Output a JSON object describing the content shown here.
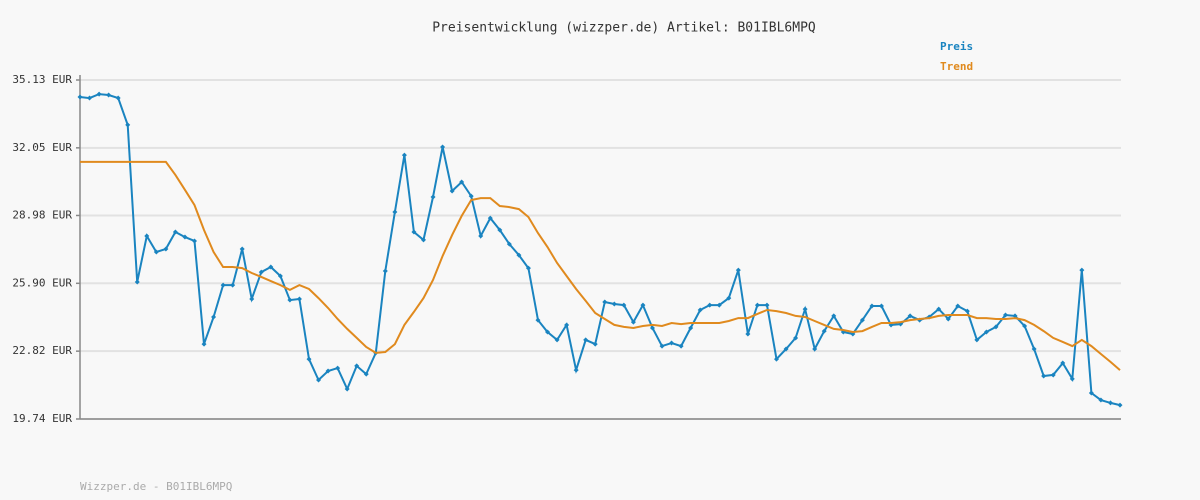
{
  "chart_data": {
    "type": "line",
    "title": "Preisentwicklung (wizzper.de) Artikel: B01IBL6MPQ",
    "source": "Wizzper.de - B01IBL6MPQ",
    "legend": "top-right",
    "grid": true,
    "ylim": [
      19.74,
      35.13
    ],
    "yticks": [
      {
        "value": 19.74,
        "label": "19.74 EUR"
      },
      {
        "value": 22.82,
        "label": "22.82 EUR"
      },
      {
        "value": 25.9,
        "label": "25.90 EUR"
      },
      {
        "value": 28.98,
        "label": "28.98 EUR"
      },
      {
        "value": 32.05,
        "label": "32.05 EUR"
      },
      {
        "value": 35.13,
        "label": "35.13 EUR"
      }
    ],
    "series": [
      {
        "name": "Preis",
        "color": "#1a84c0",
        "markers": true,
        "values": [
          34.36,
          34.31,
          34.49,
          34.45,
          34.31,
          33.09,
          25.96,
          28.05,
          27.32,
          27.46,
          28.23,
          28.0,
          27.82,
          23.14,
          24.37,
          25.82,
          25.82,
          27.46,
          25.19,
          26.41,
          26.64,
          26.23,
          25.14,
          25.19,
          22.46,
          21.51,
          21.92,
          22.05,
          21.1,
          22.15,
          21.78,
          22.74,
          26.46,
          29.14,
          31.72,
          28.23,
          27.87,
          29.82,
          32.09,
          30.09,
          30.5,
          29.86,
          28.05,
          28.86,
          28.32,
          27.68,
          27.18,
          26.59,
          24.23,
          23.69,
          23.33,
          24.01,
          21.96,
          23.33,
          23.14,
          25.05,
          24.96,
          24.91,
          24.14,
          24.91,
          23.87,
          23.05,
          23.19,
          23.05,
          23.87,
          24.69,
          24.91,
          24.91,
          25.23,
          26.5,
          23.6,
          24.91,
          24.91,
          22.46,
          22.92,
          23.42,
          24.73,
          22.92,
          23.73,
          24.42,
          23.69,
          23.6,
          24.23,
          24.87,
          24.87,
          24.01,
          24.05,
          24.42,
          24.23,
          24.37,
          24.73,
          24.28,
          24.87,
          24.64,
          23.33,
          23.69,
          23.92,
          24.46,
          24.42,
          23.96,
          22.92,
          21.69,
          21.74,
          22.28,
          21.56,
          26.5,
          20.92,
          20.6,
          20.47,
          20.37
        ]
      },
      {
        "name": "Trend",
        "color": "#e08a1e",
        "markers": false,
        "values": [
          31.41,
          31.41,
          31.41,
          31.41,
          31.41,
          31.41,
          31.41,
          31.41,
          31.41,
          31.41,
          30.82,
          30.14,
          29.45,
          28.32,
          27.32,
          26.64,
          26.64,
          26.59,
          26.37,
          26.19,
          26.0,
          25.82,
          25.6,
          25.82,
          25.64,
          25.23,
          24.78,
          24.28,
          23.83,
          23.42,
          23.01,
          22.74,
          22.78,
          23.14,
          24.01,
          24.6,
          25.23,
          26.05,
          27.14,
          28.09,
          28.96,
          29.68,
          29.77,
          29.77,
          29.41,
          29.36,
          29.27,
          28.91,
          28.18,
          27.55,
          26.82,
          26.23,
          25.64,
          25.1,
          24.55,
          24.28,
          24.01,
          23.92,
          23.87,
          23.96,
          24.01,
          23.96,
          24.1,
          24.05,
          24.1,
          24.1,
          24.1,
          24.1,
          24.19,
          24.32,
          24.32,
          24.51,
          24.69,
          24.64,
          24.55,
          24.42,
          24.37,
          24.19,
          24.01,
          23.83,
          23.78,
          23.69,
          23.73,
          23.92,
          24.1,
          24.1,
          24.14,
          24.23,
          24.28,
          24.32,
          24.42,
          24.46,
          24.46,
          24.46,
          24.32,
          24.32,
          24.28,
          24.28,
          24.32,
          24.23,
          24.01,
          23.73,
          23.42,
          23.24,
          23.05,
          23.33,
          23.05,
          22.69,
          22.33,
          21.96
        ]
      }
    ]
  }
}
